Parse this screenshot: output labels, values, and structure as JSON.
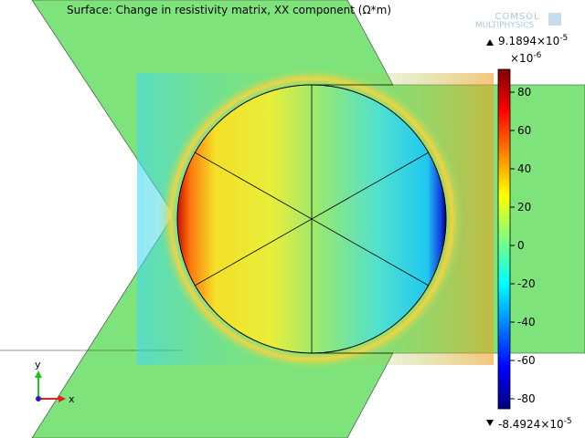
{
  "title": "Surface: Change in resistivity matrix, XX component (Ω*m)",
  "logo": {
    "line1": "COMSOL",
    "line2": "MULTIPHYSICS"
  },
  "colorbar": {
    "max": {
      "text": "9.1894×10",
      "exponent": "-5"
    },
    "scale": {
      "text": "×10",
      "exponent": "-6"
    },
    "ticks": [
      80,
      60,
      40,
      20,
      0,
      -20,
      -40,
      -60,
      -80
    ],
    "min": {
      "text": "-8.4924×10",
      "exponent": "-5"
    }
  },
  "axes": {
    "y": "y",
    "x": "x"
  }
}
